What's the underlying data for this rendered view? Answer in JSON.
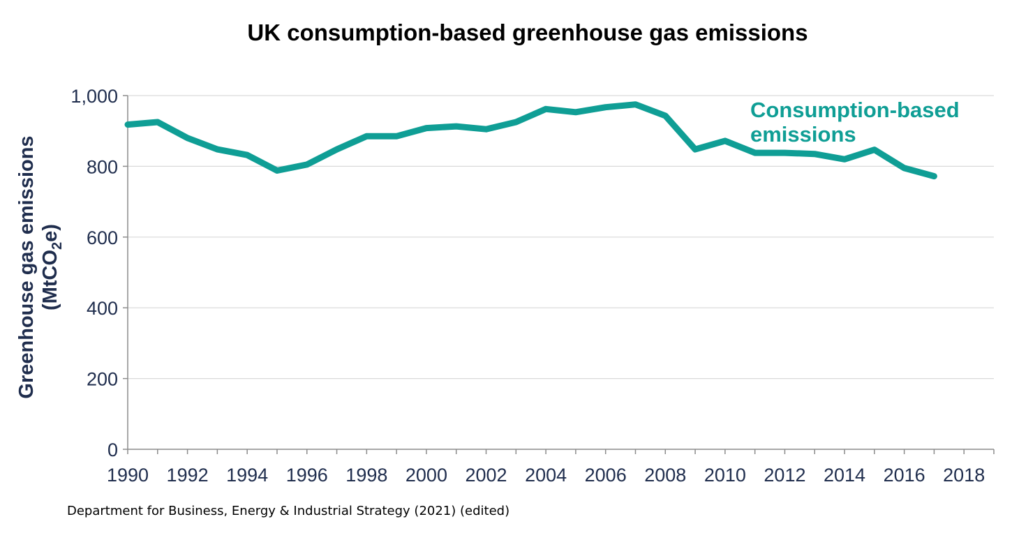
{
  "chart_data": {
    "type": "line",
    "title": "UK consumption-based greenhouse gas emissions",
    "ylabel_line1": "Greenhouse  gas emissions",
    "ylabel_line2_pre": "(MtCO",
    "ylabel_line2_sub": "2",
    "ylabel_line2_post": "e)",
    "xlabel": "",
    "xlim": [
      1990,
      2019
    ],
    "ylim": [
      0,
      1000
    ],
    "x_ticks": [
      1990,
      1992,
      1994,
      1996,
      1998,
      2000,
      2002,
      2004,
      2006,
      2008,
      2010,
      2012,
      2014,
      2016,
      2018
    ],
    "y_ticks": [
      {
        "value": 0,
        "label": "0"
      },
      {
        "value": 200,
        "label": "200"
      },
      {
        "value": 400,
        "label": "400"
      },
      {
        "value": 600,
        "label": "600"
      },
      {
        "value": 800,
        "label": "800"
      },
      {
        "value": 1000,
        "label": "1,000"
      }
    ],
    "grid": true,
    "series": [
      {
        "name": "Consumption-based emissions",
        "label_lines": [
          "Consumption-based",
          "emissions"
        ],
        "color": "#0f9e95",
        "x": [
          1990,
          1991,
          1992,
          1993,
          1994,
          1995,
          1996,
          1997,
          1998,
          1999,
          2000,
          2001,
          2002,
          2003,
          2004,
          2005,
          2006,
          2007,
          2008,
          2009,
          2010,
          2011,
          2012,
          2013,
          2014,
          2015,
          2016,
          2017
        ],
        "values": [
          918,
          925,
          880,
          848,
          832,
          788,
          805,
          848,
          885,
          885,
          908,
          913,
          905,
          925,
          962,
          953,
          967,
          975,
          943,
          848,
          872,
          838,
          838,
          835,
          820,
          847,
          795,
          772
        ]
      }
    ],
    "source": "Department for Business, Energy & Industrial Strategy (2021) (edited)"
  },
  "colors": {
    "axis_text": "#1f2d4d",
    "gridline": "#d9d9d9",
    "axis_line": "#8c8c8c",
    "series": "#0f9e95"
  }
}
